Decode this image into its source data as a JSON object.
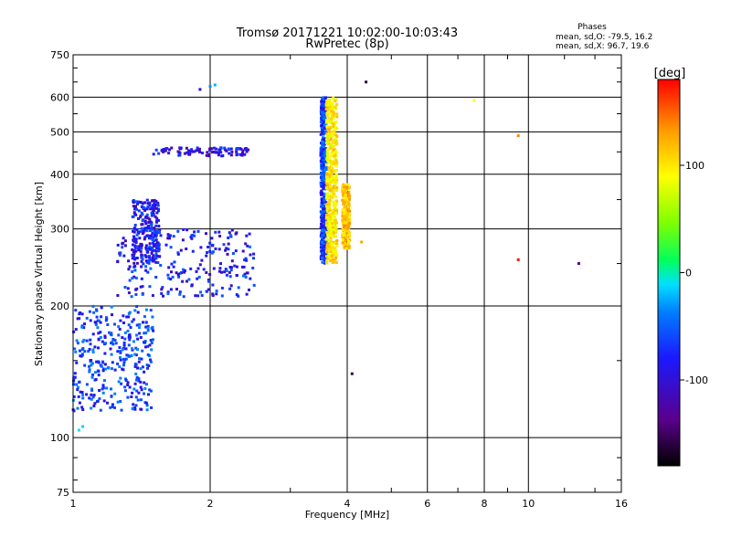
{
  "chart_data": {
    "type": "scatter",
    "title": "Tromsø 20171221 10:02:00-10:03:43",
    "subtitle": "RwPretec (8p)",
    "xlabel": "Frequency [MHz]",
    "ylabel": "Stationary phase Virtual Height [km]",
    "xscale": "log2",
    "yscale": "log",
    "xlim": [
      1,
      16
    ],
    "ylim": [
      75,
      750
    ],
    "x_ticks": [
      1,
      2,
      4,
      6,
      8,
      10,
      16
    ],
    "y_ticks": [
      75,
      100,
      200,
      300,
      400,
      500,
      600,
      750
    ],
    "grid": true,
    "phase_info": {
      "title": "Phases",
      "line_o": "mean, sd,O: -79.5, 16.2",
      "line_x": "mean, sd,X:  96.7, 19.6"
    },
    "colorbar": {
      "label": "[deg]",
      "range": [
        -180,
        180
      ],
      "ticks": [
        100,
        0,
        -100
      ],
      "colormap": "rainbow (black-purple-blue-cyan-green-yellow-orange-red)"
    },
    "series": [
      {
        "mode": "O",
        "mean_phase_deg": -79.5,
        "regions": [
          {
            "desc": "low F layer 1.0-1.5 MHz",
            "x": [
              1.0,
              1.5
            ],
            "y": [
              115,
              200
            ],
            "phase": -90
          },
          {
            "desc": "F trace 1.3-2.5 MHz",
            "x": [
              1.25,
              2.5
            ],
            "y": [
              210,
              300
            ],
            "phase": -100
          },
          {
            "desc": "upper cluster 1.35-1.55 MHz",
            "x": [
              1.35,
              1.55
            ],
            "y": [
              250,
              350
            ],
            "phase": -105
          },
          {
            "desc": "E-region band 440-460 km",
            "x": [
              1.5,
              2.45
            ],
            "y": [
              440,
              460
            ],
            "phase": -110
          },
          {
            "desc": "vertical trace at 3.55 MHz",
            "x": [
              3.5,
              3.6
            ],
            "y": [
              250,
              600
            ],
            "phase": -90
          }
        ],
        "points": [
          {
            "x": 1.03,
            "y": 104,
            "phase": -10
          },
          {
            "x": 1.05,
            "y": 106,
            "phase": -20
          },
          {
            "x": 1.9,
            "y": 625,
            "phase": -115
          },
          {
            "x": 2.0,
            "y": 635,
            "phase": -60
          },
          {
            "x": 2.05,
            "y": 640,
            "phase": -40
          }
        ]
      },
      {
        "mode": "X",
        "mean_phase_deg": 96.7,
        "regions": [
          {
            "desc": "vertical trace 3.6-3.8 MHz",
            "x": [
              3.6,
              3.8
            ],
            "y": [
              250,
              600
            ],
            "phase": 100
          },
          {
            "desc": "vertical trace 3.9-4.05 MHz",
            "x": [
              3.9,
              4.05
            ],
            "y": [
              270,
              380
            ],
            "phase": 115
          }
        ],
        "points": [
          {
            "x": 4.3,
            "y": 280,
            "phase": 130
          },
          {
            "x": 4.4,
            "y": 650,
            "phase": -160
          },
          {
            "x": 7.6,
            "y": 590,
            "phase": 90
          },
          {
            "x": 9.5,
            "y": 490,
            "phase": 140
          },
          {
            "x": 9.5,
            "y": 255,
            "phase": 175
          },
          {
            "x": 12.9,
            "y": 250,
            "phase": -140
          },
          {
            "x": 4.1,
            "y": 140,
            "phase": -160
          }
        ]
      }
    ]
  }
}
